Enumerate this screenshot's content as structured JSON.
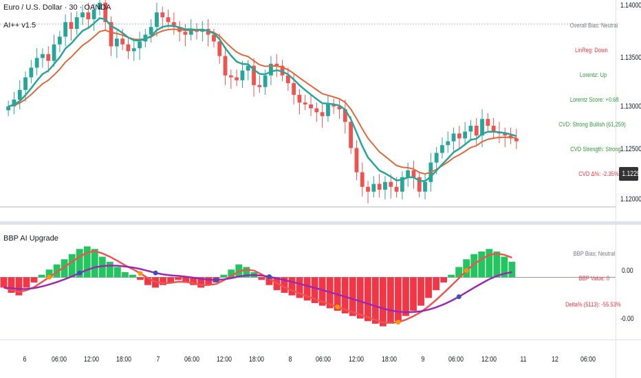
{
  "header": {
    "symbol_title": "Euro / U.S. Dollar · 30 · OANDA",
    "indicator_title": "AI++ v1.5"
  },
  "main_panel": {
    "overall_bias": "Overall Bias: Neutral",
    "linreg": "LinReg: Down",
    "lorentz": "Lorentz: Up",
    "lorentz_score": "Lorentz Score: +0.68",
    "cvd": "CVD: Strong Bullish (61,259)",
    "cvd_strength": "CVD Strength: Strong",
    "cvd_chg": "CVD Δ%: -2.35%"
  },
  "oscillator": {
    "title": "BBP AI Upgrade",
    "bias": "BBP Bias: Neutral",
    "value": "BBP Value: 0",
    "delta": "Delta% (5113): -55.53%"
  },
  "price_axis": {
    "labels": [
      "1.14000",
      "1.13500",
      "1.13000",
      "1.12500",
      "1.12000"
    ],
    "current": "1.12290"
  },
  "osc_axis": {
    "labels": [
      "0.00",
      "-0.00"
    ]
  },
  "time_axis": {
    "labels": [
      "6",
      "06:00",
      "12:00",
      "18:00",
      "7",
      "06:00",
      "12:00",
      "18:00",
      "8",
      "06:00",
      "12:00",
      "18:00",
      "9",
      "06:00",
      "12:00",
      "11",
      "12",
      "06:00"
    ]
  },
  "colors": {
    "bull": "#26a69a",
    "bear": "#ef5350",
    "ma_fast": "#26a69a",
    "ma_slow": "#e0673a",
    "hist_bull": "#22c55e",
    "hist_bear": "#f23645",
    "line_purple": "#9c27b0",
    "text_red": "#f23645",
    "text_green": "#2e9e3e",
    "text_gray": "#787b86"
  },
  "chart_data": {
    "type": "candlestick",
    "title": "Euro / U.S. Dollar · 30 · OANDA",
    "ylim": [
      1.1195,
      1.1405
    ],
    "closes": [
      1.1298,
      1.1305,
      1.1315,
      1.1328,
      1.1338,
      1.1348,
      1.1352,
      1.1345,
      1.1362,
      1.137,
      1.1385,
      1.1378,
      1.139,
      1.1395,
      1.1388,
      1.1398,
      1.1405,
      1.1385,
      1.136,
      1.1368,
      1.1362,
      1.1355,
      1.1358,
      1.1365,
      1.1372,
      1.138,
      1.1395,
      1.139,
      1.1385,
      1.138,
      1.1375,
      1.1372,
      1.1378,
      1.1375,
      1.1378,
      1.1372,
      1.1365,
      1.135,
      1.133,
      1.1328,
      1.1325,
      1.1335,
      1.134,
      1.132,
      1.1318,
      1.133,
      1.1342,
      1.134,
      1.133,
      1.1322,
      1.131,
      1.1302,
      1.13,
      1.1296,
      1.1292,
      1.1288,
      1.13,
      1.1298,
      1.1295,
      1.1282,
      1.1255,
      1.123,
      1.1215,
      1.121,
      1.1218,
      1.1212,
      1.122,
      1.1215,
      1.121,
      1.1225,
      1.1232,
      1.1225,
      1.121,
      1.122,
      1.124,
      1.125,
      1.1258,
      1.1262,
      1.127,
      1.1265,
      1.1272,
      1.1278,
      1.1268,
      1.1285,
      1.1278,
      1.1272,
      1.127,
      1.1268,
      1.1265,
      1.1262
    ],
    "x_labels": [
      "6",
      "06:00",
      "12:00",
      "18:00",
      "7",
      "06:00",
      "12:00",
      "18:00",
      "8",
      "06:00",
      "12:00",
      "18:00",
      "9",
      "06:00",
      "12:00",
      "11",
      "12",
      "06:00"
    ],
    "y_labels": [
      "1.14000",
      "1.13500",
      "1.13000",
      "1.12500",
      "1.12000"
    ],
    "current_price": 1.1229,
    "oscillator": {
      "name": "BBP AI Upgrade",
      "hist": [
        -0.2,
        -0.3,
        -0.35,
        -0.2,
        -0.1,
        0.05,
        0.15,
        0.25,
        0.35,
        0.45,
        0.55,
        0.6,
        0.55,
        0.4,
        0.3,
        0.2,
        0.1,
        0.05,
        -0.05,
        -0.15,
        -0.2,
        -0.15,
        -0.1,
        -0.05,
        -0.1,
        -0.15,
        -0.2,
        -0.15,
        -0.1,
        0.05,
        0.15,
        0.25,
        0.2,
        0.1,
        -0.05,
        -0.15,
        -0.25,
        -0.3,
        -0.35,
        -0.4,
        -0.45,
        -0.5,
        -0.55,
        -0.6,
        -0.65,
        -0.7,
        -0.75,
        -0.8,
        -0.85,
        -0.9,
        -0.95,
        -0.9,
        -0.85,
        -0.75,
        -0.65,
        -0.55,
        -0.4,
        -0.25,
        -0.1,
        0.05,
        0.2,
        0.35,
        0.45,
        0.5,
        0.55,
        0.5,
        0.4,
        0.3
      ],
      "ylim": [
        -1.1,
        0.9
      ]
    }
  }
}
